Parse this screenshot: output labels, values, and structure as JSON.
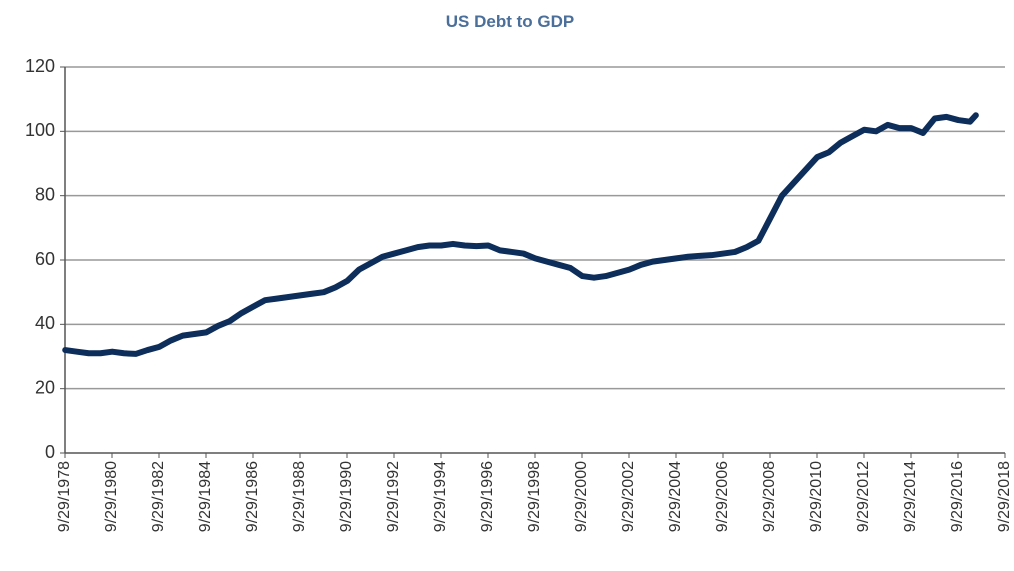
{
  "chart_data": {
    "type": "line",
    "title": "US Debt to GDP",
    "x": [
      1978.75,
      1979.25,
      1979.75,
      1980.25,
      1980.75,
      1981.25,
      1981.75,
      1982.25,
      1982.75,
      1983.25,
      1983.75,
      1984.25,
      1984.75,
      1985.25,
      1985.75,
      1986.25,
      1986.75,
      1987.25,
      1987.75,
      1988.25,
      1988.75,
      1989.25,
      1989.75,
      1990.25,
      1990.75,
      1991.25,
      1991.75,
      1992.25,
      1992.75,
      1993.25,
      1993.75,
      1994.25,
      1994.75,
      1995.25,
      1995.75,
      1996.25,
      1996.75,
      1997.25,
      1997.75,
      1998.25,
      1998.75,
      1999.25,
      1999.75,
      2000.25,
      2000.75,
      2001.25,
      2001.75,
      2002.25,
      2002.75,
      2003.25,
      2003.75,
      2004.25,
      2004.75,
      2005.25,
      2005.75,
      2006.25,
      2006.75,
      2007.25,
      2007.75,
      2008.25,
      2008.75,
      2009.25,
      2009.75,
      2010.25,
      2010.75,
      2011.25,
      2011.75,
      2012.25,
      2012.75,
      2013.25,
      2013.75,
      2014.25,
      2014.75,
      2015.25,
      2015.75,
      2016.25,
      2016.75,
      2017.25,
      2017.5
    ],
    "series": [
      {
        "name": "US Debt to GDP",
        "color": "#0d2d5a",
        "values": [
          32,
          31.5,
          31,
          31,
          31.5,
          31,
          30.8,
          32,
          33,
          35,
          36.5,
          37,
          37.5,
          39.5,
          41,
          43.5,
          45.5,
          47.5,
          48,
          48.5,
          49,
          49.5,
          50,
          51.5,
          53.5,
          57,
          59,
          61,
          62,
          63,
          64,
          64.5,
          64.5,
          65,
          64.5,
          64.3,
          64.5,
          63,
          62.5,
          62,
          60.5,
          59.5,
          58.5,
          57.5,
          55,
          54.5,
          55,
          56,
          57,
          58.5,
          59.5,
          60,
          60.5,
          61,
          61.3,
          61.5,
          62,
          62.5,
          64,
          66,
          73,
          80,
          84,
          88,
          92,
          93.5,
          96.5,
          98.5,
          100.5,
          100,
          102,
          101,
          101,
          99.5,
          104,
          104.5,
          103.5,
          103,
          105
        ]
      }
    ],
    "xlim": [
      1978.74,
      2018.74
    ],
    "xticks": [
      {
        "value": 1978.74,
        "label": "9/29/1978"
      },
      {
        "value": 1980.74,
        "label": "9/29/1980"
      },
      {
        "value": 1982.74,
        "label": "9/29/1982"
      },
      {
        "value": 1984.74,
        "label": "9/29/1984"
      },
      {
        "value": 1986.74,
        "label": "9/29/1986"
      },
      {
        "value": 1988.74,
        "label": "9/29/1988"
      },
      {
        "value": 1990.74,
        "label": "9/29/1990"
      },
      {
        "value": 1992.74,
        "label": "9/29/1992"
      },
      {
        "value": 1994.74,
        "label": "9/29/1994"
      },
      {
        "value": 1996.74,
        "label": "9/29/1996"
      },
      {
        "value": 1998.74,
        "label": "9/29/1998"
      },
      {
        "value": 2000.74,
        "label": "9/29/2000"
      },
      {
        "value": 2002.74,
        "label": "9/29/2002"
      },
      {
        "value": 2004.74,
        "label": "9/29/2004"
      },
      {
        "value": 2006.74,
        "label": "9/29/2006"
      },
      {
        "value": 2008.74,
        "label": "9/29/2008"
      },
      {
        "value": 2010.74,
        "label": "9/29/2010"
      },
      {
        "value": 2012.74,
        "label": "9/29/2012"
      },
      {
        "value": 2014.74,
        "label": "9/29/2014"
      },
      {
        "value": 2016.74,
        "label": "9/29/2016"
      },
      {
        "value": 2018.74,
        "label": "9/29/2018"
      }
    ],
    "ylim": [
      0,
      120
    ],
    "yticks": [
      0,
      20,
      40,
      60,
      80,
      100,
      120
    ],
    "grid": true
  }
}
